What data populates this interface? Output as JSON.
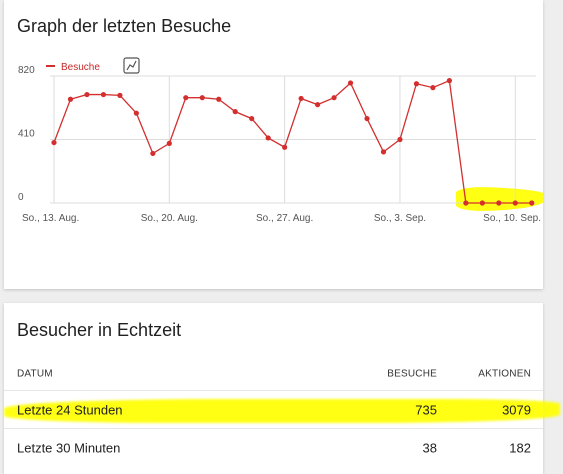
{
  "graph_card": {
    "title": "Graph der letzten Besuche",
    "legend_label": "Besuche",
    "chart_type_icon": "line-chart-icon"
  },
  "chart_data": {
    "type": "line",
    "series": [
      {
        "name": "Besuche",
        "color": "#d32f2f",
        "values": [
          390,
          670,
          700,
          700,
          695,
          580,
          320,
          385,
          680,
          680,
          670,
          590,
          545,
          420,
          360,
          675,
          635,
          680,
          775,
          545,
          330,
          410,
          770,
          745,
          790,
          0,
          0,
          0,
          0,
          0
        ]
      }
    ],
    "x_tick_labels": [
      "So., 13. Aug.",
      "So., 20. Aug.",
      "So., 27. Aug.",
      "So., 3. Sep.",
      "So., 10. Sep."
    ],
    "x_tick_index": [
      0,
      7,
      14,
      21,
      28
    ],
    "y_ticks": [
      0,
      410,
      820
    ],
    "ylim": [
      0,
      820
    ],
    "grid": true,
    "legend_placement": "top-left"
  },
  "live_card": {
    "title": "Besucher in Echtzeit",
    "columns": [
      "DATUM",
      "BESUCHE",
      "AKTIONEN"
    ],
    "rows": [
      {
        "date": "Letzte 24 Stunden",
        "visits": "735",
        "actions": "3079"
      },
      {
        "date": "Letzte 30 Minuten",
        "visits": "38",
        "actions": "182"
      }
    ]
  },
  "colors": {
    "accent_line": "#d32f2f",
    "highlight": "#ffff00"
  }
}
